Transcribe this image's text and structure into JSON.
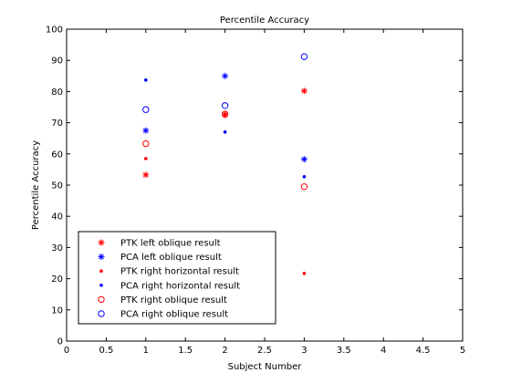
{
  "chart_data": {
    "type": "scatter",
    "title": "Percentile Accuracy",
    "xlabel": "Subject Number",
    "ylabel": "Percentile Accuracy",
    "xlim": [
      0,
      5
    ],
    "ylim": [
      0,
      100
    ],
    "xticks": [
      0,
      0.5,
      1,
      1.5,
      2,
      2.5,
      3,
      3.5,
      4,
      4.5,
      5
    ],
    "xtick_labels": [
      "0",
      "0.5",
      "1",
      "1.5",
      "2",
      "2.5",
      "3",
      "3.5",
      "4",
      "4.5",
      "5"
    ],
    "yticks": [
      0,
      10,
      20,
      30,
      40,
      50,
      60,
      70,
      80,
      90,
      100
    ],
    "ytick_labels": [
      "0",
      "10",
      "20",
      "30",
      "40",
      "50",
      "60",
      "70",
      "80",
      "90",
      "100"
    ],
    "grid": false,
    "legend_position": "bottom-left",
    "series": [
      {
        "name": "PTK left oblique result",
        "marker": "asterisk",
        "color": "#ff0000",
        "x": [
          1,
          2,
          3
        ],
        "y": [
          53.3,
          72.5,
          80.2
        ]
      },
      {
        "name": "PCA left oblique result",
        "marker": "asterisk",
        "color": "#0000ff",
        "x": [
          1,
          2,
          3
        ],
        "y": [
          67.5,
          85.0,
          58.3
        ]
      },
      {
        "name": "PTK right horizontal result",
        "marker": "dot",
        "color": "#ff0000",
        "x": [
          1,
          2,
          3
        ],
        "y": [
          58.5,
          72.8,
          21.7
        ]
      },
      {
        "name": "PCA right horizontal result",
        "marker": "dot",
        "color": "#0000ff",
        "x": [
          1,
          2,
          3
        ],
        "y": [
          83.7,
          67.0,
          52.7
        ]
      },
      {
        "name": "PTK right oblique result",
        "marker": "circle",
        "color": "#ff0000",
        "x": [
          1,
          2,
          3
        ],
        "y": [
          63.3,
          72.8,
          49.5
        ]
      },
      {
        "name": "PCA right oblique result",
        "marker": "circle",
        "color": "#0000ff",
        "x": [
          1,
          2,
          3
        ],
        "y": [
          74.2,
          75.5,
          91.2
        ]
      }
    ]
  }
}
